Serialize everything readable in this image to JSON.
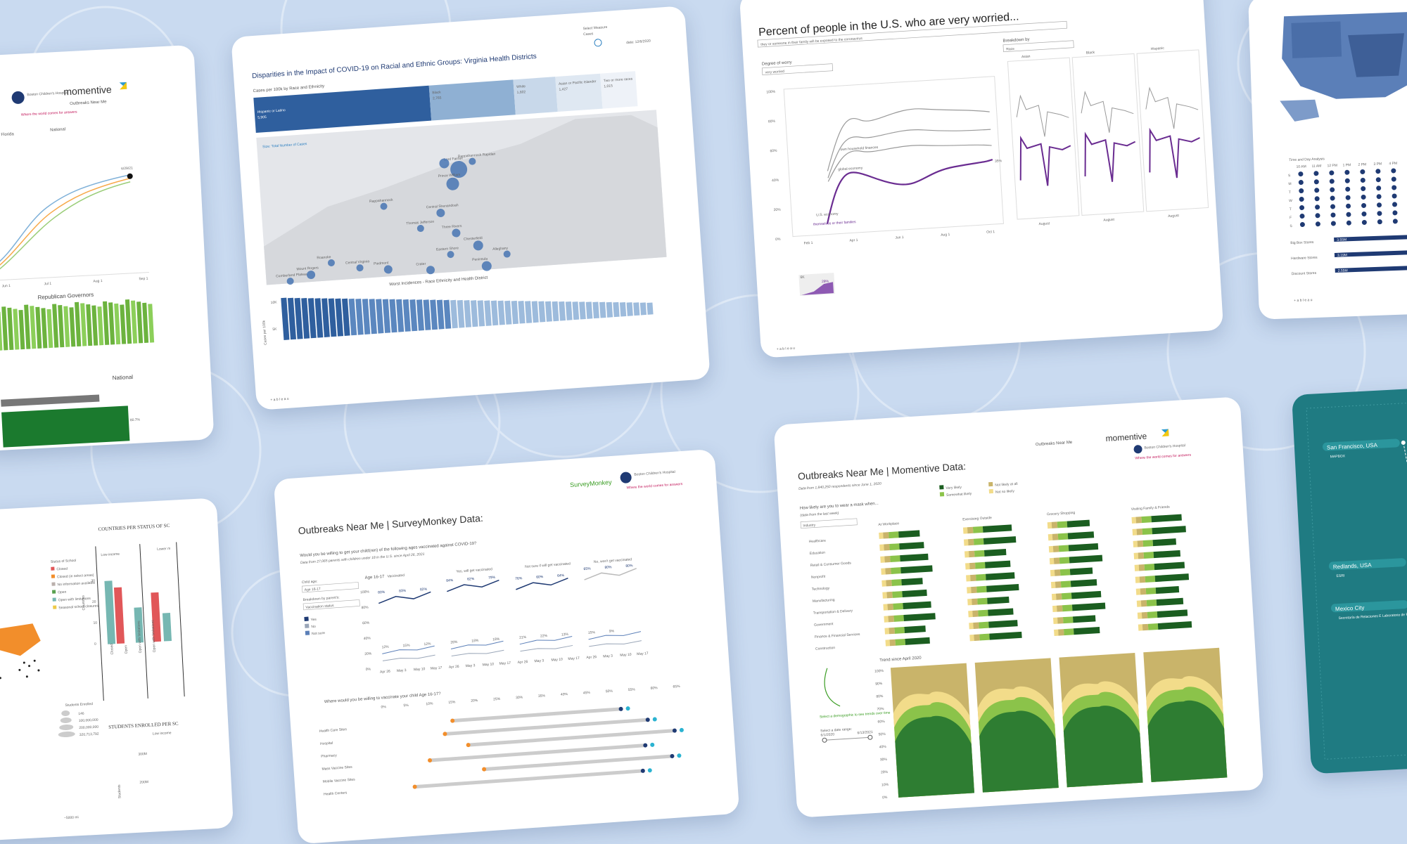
{
  "colors": {
    "background": "#c9daf0",
    "momentive_green": "#2e7d32",
    "dark_green": "#1b5e20",
    "light_green": "#8bc34a",
    "tan": "#c9b46a",
    "purple": "#6a2c91",
    "navy": "#1f3a73",
    "teal": "#2b7f86",
    "steel_blue": "#3e6ca8"
  },
  "card_left_top": {
    "logo_text": "Boston Children's Hospital",
    "momentive": "momentive",
    "outbreaks": "Outbreaks Near Me",
    "tagline": "Where the world comes for answers",
    "florida": "Florida",
    "national": "National",
    "rep_gov": "Republican Governors",
    "national2": "National",
    "date": "6/29/21",
    "months": [
      "Jun 1",
      "Jul 1",
      "Aug 1",
      "Sep 1"
    ],
    "pct": "80.7%"
  },
  "card_va": {
    "title": "Disparities in the Impact of COVID-19 on Racial and Ethnic Groups: Virginia Health Districts",
    "select_measure": "Select Measure",
    "cases": "Cases",
    "data_date": "data: 12/6/2020",
    "subtitle": "Cases per 100k by Race and Ethnicity",
    "groups": [
      {
        "name": "Hispanic or Latino",
        "value": "5,905"
      },
      {
        "name": "Black",
        "value": "2,765"
      },
      {
        "name": "White",
        "value": "1,602"
      },
      {
        "name": "Asian or Pacific Islander",
        "value": "1,427"
      },
      {
        "name": "Two or more races",
        "value": "1,015"
      }
    ],
    "size_label": "Size: Total Number of Cases",
    "places": [
      "Lord Fairfax",
      "Prince William",
      "Rappahannock Rapidan",
      "Central Shenandoah",
      "Thomas Jefferson",
      "Rappahannock",
      "Three Rivers",
      "Chesterfield",
      "Eastern Shore",
      "Alleghany",
      "Roanoke",
      "Central Virginia",
      "Piedmont",
      "Crater",
      "Peninsula",
      "Cumberland Plateau",
      "Mount Rogers"
    ],
    "bottom_title": "Worst Incidences - Race Ethnicity and Health District",
    "y_label": "Cases per 100k",
    "y_ticks": [
      "10K",
      "5K"
    ],
    "footer": "+ a b l e a u"
  },
  "card_worry": {
    "title": "Percent of people in the U.S. who are very worried...",
    "dropdown": "they or someone in their family will be exposed to the coronavirus",
    "degree_label": "Degree of worry",
    "degree_value": "very worried",
    "breakdown_label": "Breakdown by",
    "breakdown_value": "Race",
    "y_ticks": [
      "100%",
      "80%",
      "60%",
      "40%",
      "20%",
      "0%"
    ],
    "x_ticks": [
      "Feb 1",
      "Apr 1",
      "Jun 1",
      "Aug 1",
      "Oct 1"
    ],
    "annot": [
      "own household finances",
      "global economy",
      "U.S. economy",
      "themselves or their families"
    ],
    "end_vals": [
      "35%"
    ],
    "panels": [
      "Asian",
      "Black",
      "Hispanic"
    ],
    "panel_x": [
      "August",
      "August",
      "August"
    ],
    "mini_label": "6K",
    "mini_val": "29%",
    "footer": "+ a b l e a u"
  },
  "card_map": {
    "title": "Time and Day Analysis",
    "hours": [
      "10 AM",
      "11 AM",
      "12 PM",
      "1 PM",
      "2 PM",
      "3 PM",
      "4 PM"
    ],
    "days": [
      "S",
      "M",
      "T",
      "W",
      "T",
      "F",
      "S"
    ],
    "bars": [
      {
        "name": "Big Box Stores",
        "value": "3.55M"
      },
      {
        "name": "Hardware Stores",
        "value": "3.19M"
      },
      {
        "name": "Discount Stores",
        "value": "2.55M"
      }
    ],
    "footer": "+ a b l e a u"
  },
  "card_school": {
    "heading": "COUNTRIES PER STATUS OF SC",
    "status_title": "Status of School",
    "statuses": [
      "Closed",
      "Closed (in select areas)",
      "No information available",
      "Open",
      "Open with limitations",
      "Seasonal school closures"
    ],
    "income": [
      "Low income",
      "Lower m"
    ],
    "y_label": "Countries",
    "y_ticks": [
      "30",
      "20",
      "10",
      "0"
    ],
    "x_cats": [
      "Closed",
      "Open",
      "Open with limitations",
      "Open with limitations"
    ],
    "enrolled": "Students Enrolled",
    "enroll_vals": [
      "146",
      "100,000,000",
      "200,000,000",
      "320,713,792"
    ],
    "scale": "~5000 mi",
    "students_heading": "STUDENTS ENROLLED PER SC",
    "low_income": "Low income",
    "ticks2": [
      "300M",
      "200M"
    ],
    "students": "Students"
  },
  "card_survey": {
    "title": "Outbreaks Near Me | SurveyMonkey Data:",
    "surveymonkey": "SurveyMonkey",
    "bch": "Boston Children's Hospital",
    "tagline": "Where the world comes for answers",
    "question": "Would you be willing to get your child(ren) of the following ages vaccinated against COVID-19?",
    "sub": "Data from 27,065 parents with children under 18 in the U.S. since April 26, 2021",
    "child_age": "Child age:",
    "child_age_val": "Age 16-17",
    "breakdown": "Breakdown by parent's:",
    "breakdown_val": "Vaccination status",
    "legend": [
      "Yes",
      "No",
      "Not sure"
    ],
    "age_label": "Age 16-17",
    "cols": [
      "Vaccinated",
      "Yes, will get vaccinated",
      "Not sure if will get vaccinated",
      "No, won't get vaccinated"
    ],
    "y_ticks": [
      "100%",
      "80%",
      "60%",
      "40%",
      "20%",
      "0%"
    ],
    "vals_top": [
      "80%",
      "83%",
      "82%",
      "84%",
      "62%",
      "79%",
      "76%",
      "60%",
      "64%",
      "65%",
      "80%",
      "80%"
    ],
    "vals_low": [
      "12%",
      "15%",
      "12%",
      "28%",
      "18%",
      "18%",
      "21%",
      "22%",
      "13%",
      "15%",
      "9%"
    ],
    "x_ticks": [
      "Apr 26",
      "May 3",
      "May 10",
      "May 17"
    ],
    "q2": "Where would you be willing to vaccinate your child Age 16-17?",
    "axis2": [
      "0%",
      "5%",
      "10%",
      "15%",
      "20%",
      "25%",
      "30%",
      "35%",
      "40%",
      "45%",
      "50%",
      "55%",
      "60%",
      "65%"
    ],
    "sites": [
      "Health Care Sites",
      "Hospital",
      "Pharmacy",
      "Mass Vaccine Sites",
      "Mobile Vaccine Sites",
      "Health Centers"
    ]
  },
  "card_mask": {
    "title": "Outbreaks Near Me | Momentive Data:",
    "outbreaks": "Outbreaks Near Me",
    "momentive": "momentive",
    "bch": "Boston Children's Hospital",
    "tagline": "Where the world comes for answers",
    "sub": "Data from 1,840,250 respondents since June 1, 2020",
    "legend": [
      "Very likely",
      "Somewhat likely",
      "Not likely at all",
      "Not so likely"
    ],
    "question": "How likely are you to wear a mask when...",
    "sub2": "(data from the last week)",
    "dropdown": "Industry",
    "activities": [
      "At Workplace",
      "Exercising Outside",
      "Grocery Shopping",
      "Visiting Family & Friends"
    ],
    "industries": [
      "Healthcare",
      "Education",
      "Retail & Consumer Goods",
      "Nonprofit",
      "Technology",
      "Manufacturing",
      "Transportation & Delivery",
      "Government",
      "Finance & Financial Services",
      "Construction"
    ],
    "trend": "Trend since April 2020",
    "hint": "Select a demographic to see trends over time",
    "date_range": "Select a date range:",
    "d1": "6/1/2020",
    "d2": "6/13/2021",
    "y_ticks": [
      "100%",
      "90%",
      "80%",
      "70%",
      "60%",
      "50%",
      "40%",
      "30%",
      "20%",
      "10%",
      "0%"
    ]
  },
  "card_teal": {
    "cities": [
      {
        "name": "San Francisco, USA",
        "sub": "MAPBOX"
      },
      {
        "name": "Redlands, USA",
        "sub": "ESRI"
      },
      {
        "name": "Mexico City",
        "sub": "Secretaría de Relaciones E Laboratorio de Políticas"
      }
    ]
  }
}
